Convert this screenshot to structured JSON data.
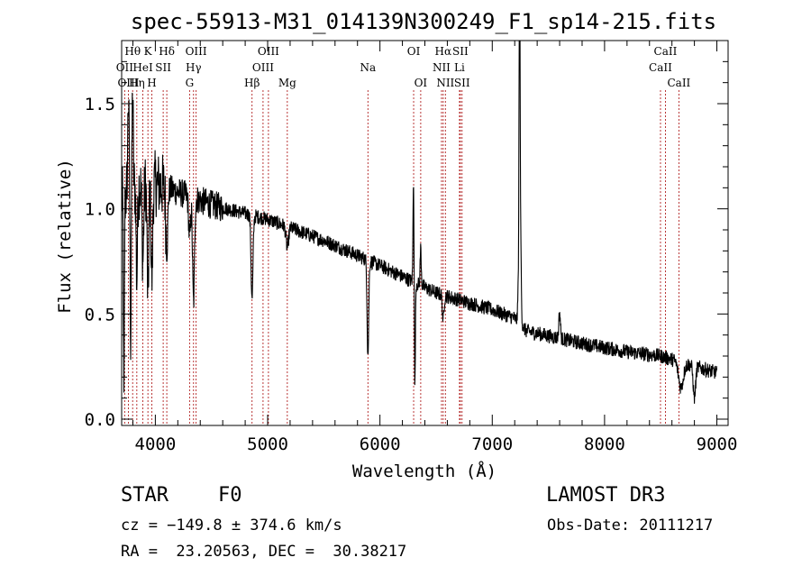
{
  "chart_data": {
    "type": "line",
    "title": "spec-55913-M31_014139N300249_F1_sp14-215.fits",
    "xlabel": "Wavelength (Å)",
    "ylabel": "Flux (relative)",
    "xlim": [
      3700,
      9100
    ],
    "ylim": [
      -0.03,
      1.8
    ],
    "x_ticks": [
      4000,
      5000,
      6000,
      7000,
      8000,
      9000
    ],
    "y_ticks": [
      0.0,
      0.5,
      1.0,
      1.5
    ],
    "y_tick_labels": [
      "0.0",
      "0.5",
      "1.0",
      "1.5"
    ],
    "grid": false,
    "line_color": "#000000",
    "marker_color": "#b22222",
    "spectral_lines": [
      {
        "label": "Hθ",
        "wavelength": 3798,
        "row": 0
      },
      {
        "label": "OII",
        "wavelength": 3727,
        "row": 1
      },
      {
        "label": "OIII",
        "wavelength": 3760,
        "row": 2
      },
      {
        "label": "Hη",
        "wavelength": 3835,
        "row": 2
      },
      {
        "label": "K",
        "wavelength": 3934,
        "row": 0
      },
      {
        "label": "HeI",
        "wavelength": 3889,
        "row": 1
      },
      {
        "label": "H",
        "wavelength": 3969,
        "row": 2
      },
      {
        "label": "SII",
        "wavelength": 4070,
        "row": 1
      },
      {
        "label": "Hδ",
        "wavelength": 4102,
        "row": 0
      },
      {
        "label": "OIII",
        "wavelength": 4363,
        "row": 0
      },
      {
        "label": "Hγ",
        "wavelength": 4340,
        "row": 1
      },
      {
        "label": "G",
        "wavelength": 4305,
        "row": 2
      },
      {
        "label": "Hβ",
        "wavelength": 4861,
        "row": 2
      },
      {
        "label": "OIII",
        "wavelength": 5007,
        "row": 0
      },
      {
        "label": "OIII",
        "wavelength": 4959,
        "row": 1
      },
      {
        "label": "Mg",
        "wavelength": 5175,
        "row": 2
      },
      {
        "label": "Na",
        "wavelength": 5893,
        "row": 1
      },
      {
        "label": "OI",
        "wavelength": 6300,
        "row": 0
      },
      {
        "label": "OI",
        "wavelength": 6363,
        "row": 2
      },
      {
        "label": "Hα",
        "wavelength": 6563,
        "row": 0
      },
      {
        "label": "NII",
        "wavelength": 6548,
        "row": 1
      },
      {
        "label": "NII",
        "wavelength": 6583,
        "row": 2
      },
      {
        "label": "SII",
        "wavelength": 6716,
        "row": 0
      },
      {
        "label": "Li",
        "wavelength": 6708,
        "row": 1
      },
      {
        "label": "SII",
        "wavelength": 6731,
        "row": 2
      },
      {
        "label": "CaII",
        "wavelength": 8542,
        "row": 0
      },
      {
        "label": "CaII",
        "wavelength": 8498,
        "row": 1
      },
      {
        "label": "CaII",
        "wavelength": 8662,
        "row": 2
      }
    ],
    "continuum": [
      [
        3700,
        1.05
      ],
      [
        3800,
        1.1
      ],
      [
        4000,
        1.12
      ],
      [
        4500,
        1.02
      ],
      [
        5000,
        0.95
      ],
      [
        5500,
        0.85
      ],
      [
        6000,
        0.73
      ],
      [
        6500,
        0.6
      ],
      [
        7000,
        0.52
      ],
      [
        7200,
        0.48
      ],
      [
        7300,
        0.42
      ],
      [
        7800,
        0.36
      ],
      [
        8200,
        0.32
      ],
      [
        8500,
        0.3
      ],
      [
        9000,
        0.22
      ]
    ],
    "features": [
      {
        "x": 3720,
        "dy": -1.0,
        "w": 6
      },
      {
        "x": 3760,
        "dy": 0.45,
        "w": 8
      },
      {
        "x": 3780,
        "dy": -0.7,
        "w": 6
      },
      {
        "x": 3798,
        "dy": 0.45,
        "w": 7
      },
      {
        "x": 3835,
        "dy": -0.45,
        "w": 8
      },
      {
        "x": 3889,
        "dy": -0.35,
        "w": 10
      },
      {
        "x": 3934,
        "dy": -0.55,
        "w": 10
      },
      {
        "x": 3969,
        "dy": -0.45,
        "w": 10
      },
      {
        "x": 4102,
        "dy": -0.3,
        "w": 12
      },
      {
        "x": 4305,
        "dy": -0.2,
        "w": 12
      },
      {
        "x": 4340,
        "dy": -0.5,
        "w": 12
      },
      {
        "x": 4861,
        "dy": -0.4,
        "w": 12
      },
      {
        "x": 5175,
        "dy": -0.1,
        "w": 16
      },
      {
        "x": 5893,
        "dy": -0.45,
        "w": 10
      },
      {
        "x": 6300,
        "dy": 0.55,
        "w": 7
      },
      {
        "x": 6310,
        "dy": -0.55,
        "w": 7
      },
      {
        "x": 6363,
        "dy": 0.18,
        "w": 7
      },
      {
        "x": 6563,
        "dy": -0.12,
        "w": 10
      },
      {
        "x": 7243,
        "dy": 1.35,
        "w": 5
      },
      {
        "x": 7245,
        "dy": 0.8,
        "w": 12
      },
      {
        "x": 7600,
        "dy": 0.12,
        "w": 10
      },
      {
        "x": 8680,
        "dy": -0.12,
        "w": 30
      },
      {
        "x": 8800,
        "dy": -0.15,
        "w": 15
      }
    ]
  },
  "info": {
    "object_class": "STAR",
    "subclass": "F0",
    "survey": "LAMOST DR3",
    "cz": "cz = −149.8 ± 374.6 km/s",
    "obs_date": "Obs-Date: 20111217",
    "coords": "RA =  23.20563, DEC =  30.38217"
  }
}
